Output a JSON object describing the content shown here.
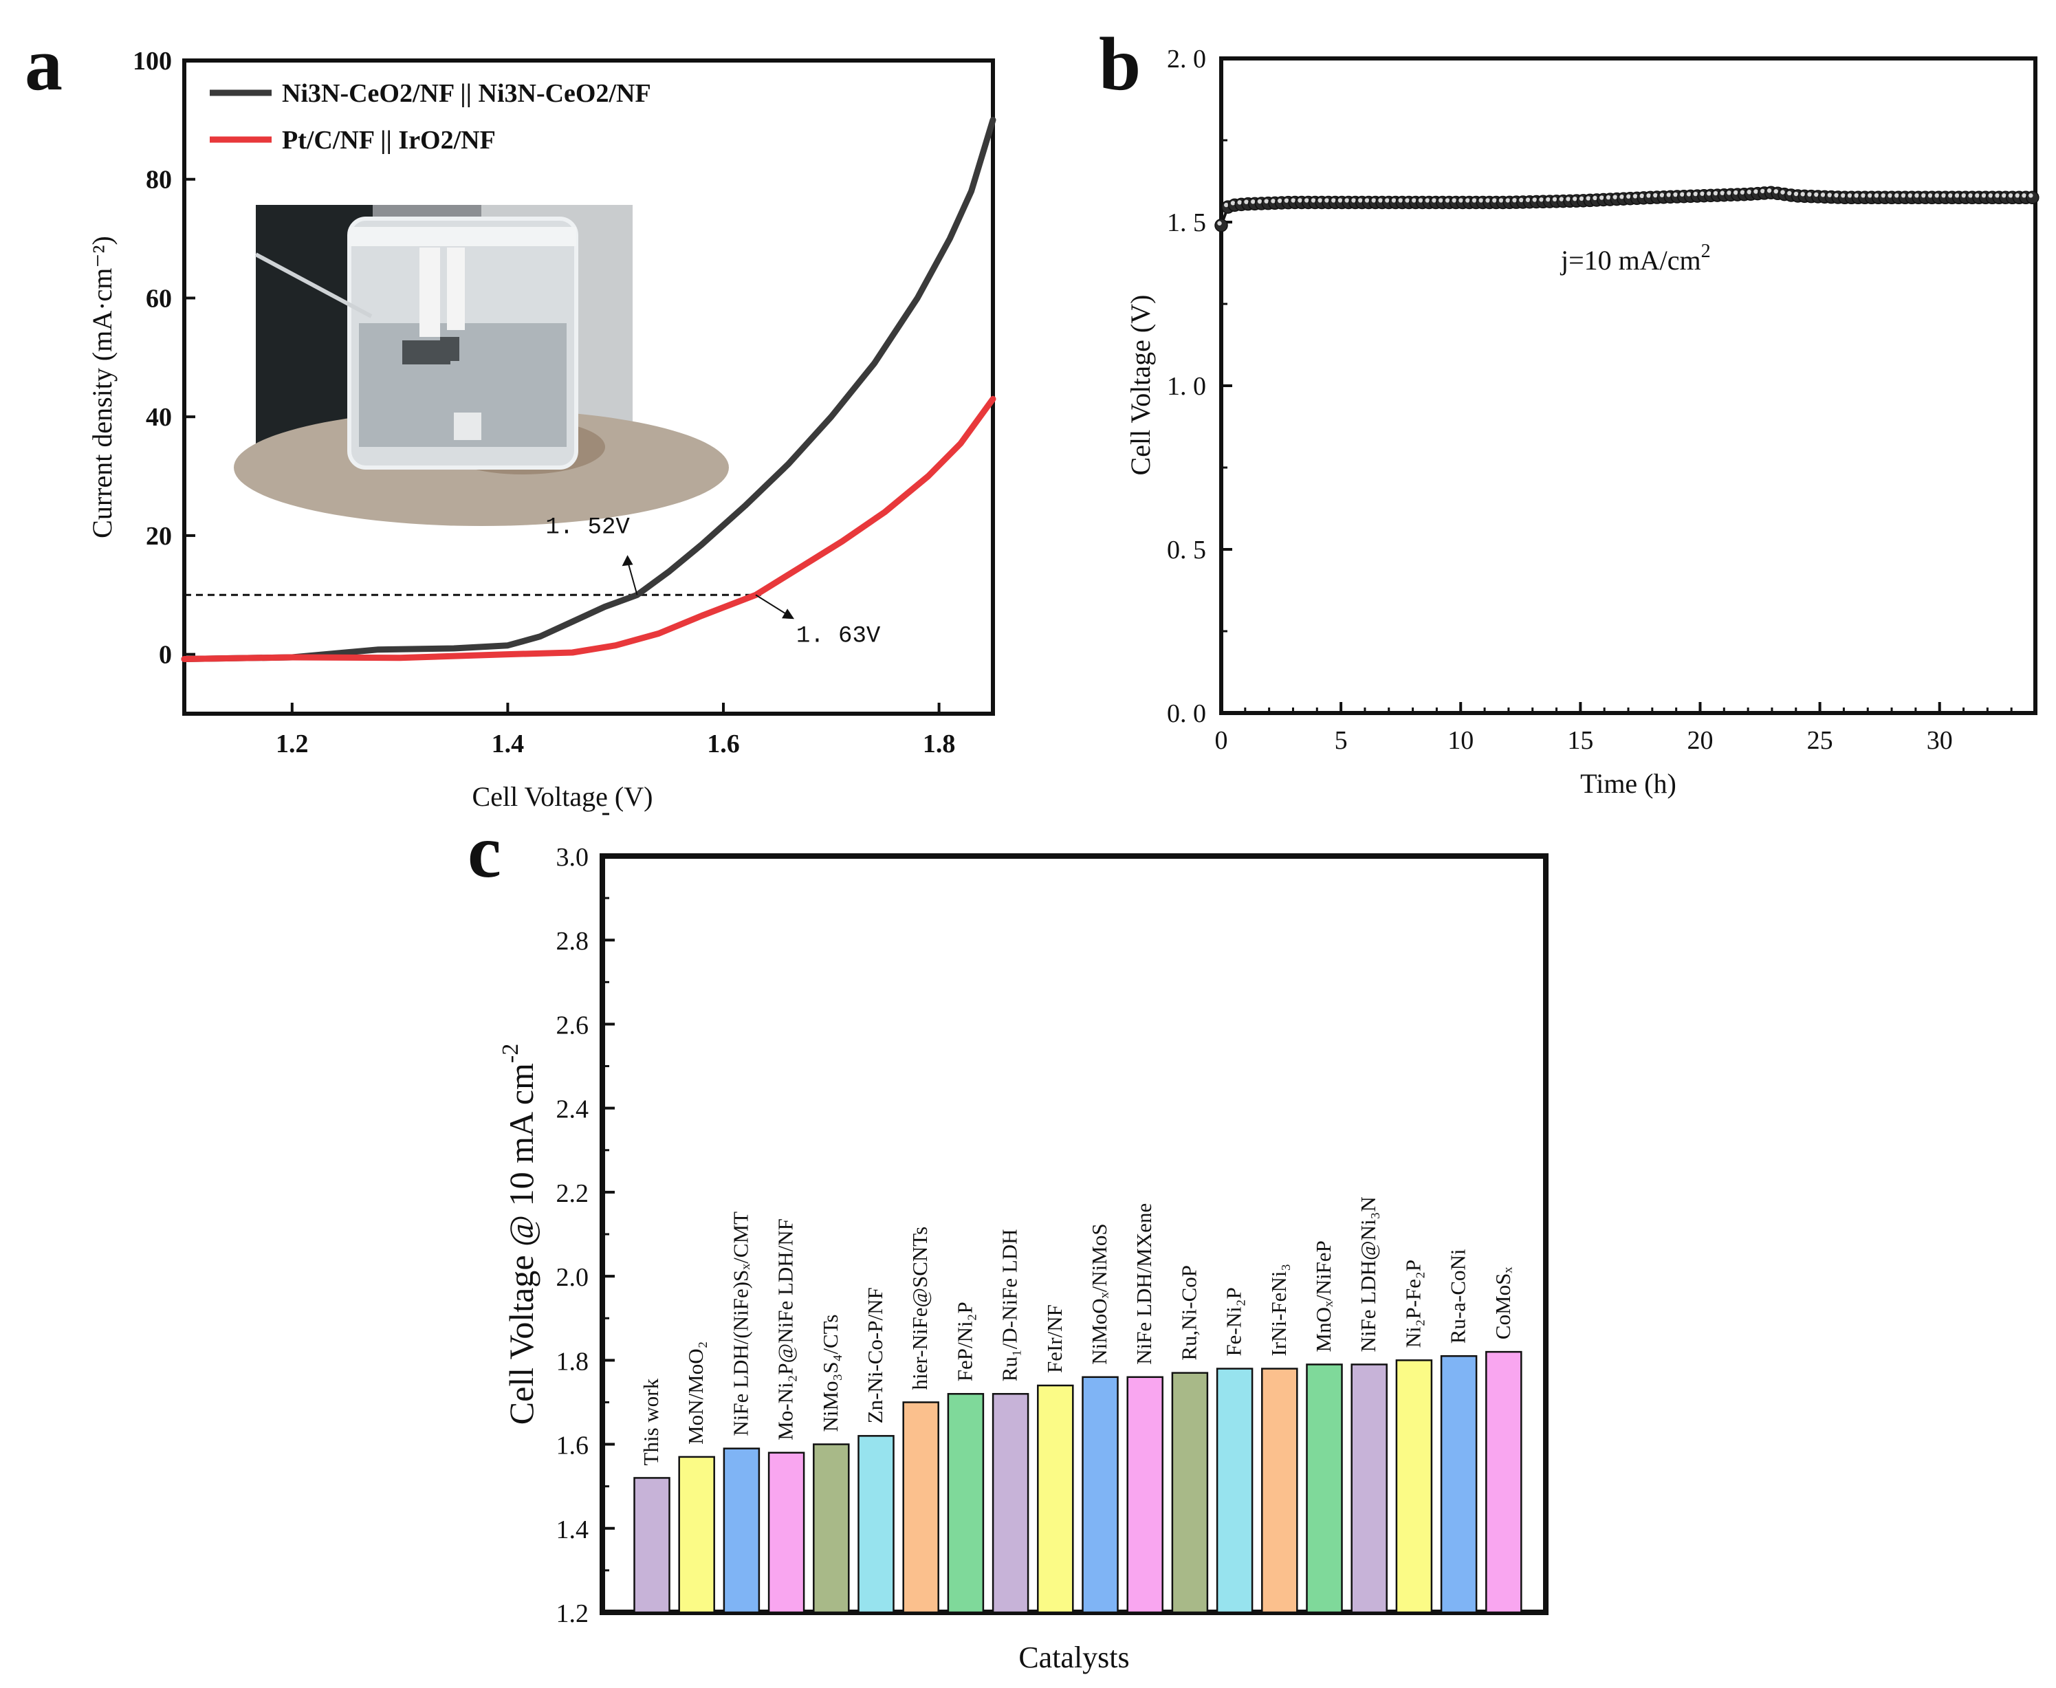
{
  "panels": {
    "a": {
      "letter": "a"
    },
    "b": {
      "letter": "b"
    },
    "c": {
      "letter": "c"
    }
  },
  "chart_data": [
    {
      "id": "a",
      "type": "line",
      "xlabel": "Cell Voltage (V)",
      "ylabel": "Current density (mA·cm⁻²)",
      "xlim": [
        1.1,
        1.85
      ],
      "ylim": [
        -10,
        100
      ],
      "xticks": [
        1.2,
        1.4,
        1.6,
        1.8
      ],
      "yticks": [
        0,
        20,
        40,
        60,
        80,
        100
      ],
      "inset": "photo of electrolyzer cell (Ni3N-CeO2/NF two-electrode setup)",
      "series": [
        {
          "name": "Ni3N-CeO2/NF || Ni3N-CeO2/NF",
          "color": "#3a3a3a",
          "x": [
            1.1,
            1.2,
            1.28,
            1.35,
            1.4,
            1.43,
            1.46,
            1.49,
            1.52,
            1.55,
            1.58,
            1.62,
            1.66,
            1.7,
            1.74,
            1.78,
            1.81,
            1.83,
            1.85
          ],
          "y": [
            -0.8,
            -0.5,
            0.8,
            1.0,
            1.5,
            3.0,
            5.5,
            8.0,
            10.0,
            14.0,
            18.5,
            25.0,
            32.0,
            40.0,
            49.0,
            60.0,
            70.0,
            78.0,
            90.0
          ]
        },
        {
          "name": "Pt/C/NF || IrO2/NF",
          "color": "#e8383b",
          "x": [
            1.1,
            1.2,
            1.3,
            1.4,
            1.46,
            1.5,
            1.54,
            1.58,
            1.63,
            1.67,
            1.71,
            1.75,
            1.79,
            1.82,
            1.85
          ],
          "y": [
            -0.8,
            -0.5,
            -0.6,
            0.0,
            0.3,
            1.5,
            3.5,
            6.5,
            10.0,
            14.5,
            19.0,
            24.0,
            30.0,
            35.5,
            43.0
          ]
        }
      ],
      "reference_line": {
        "y": 10
      },
      "annotations": [
        {
          "text": "1. 52V",
          "x": 1.52,
          "y": 10
        },
        {
          "text": "1. 63V",
          "x": 1.63,
          "y": 10
        }
      ]
    },
    {
      "id": "b",
      "type": "line",
      "xlabel": "Time (h)",
      "ylabel": "Cell Voltage (V)",
      "xlim": [
        0,
        34
      ],
      "ylim": [
        0,
        2.0
      ],
      "xticks": [
        0,
        5,
        10,
        15,
        20,
        25,
        30
      ],
      "yticks": [
        "0. 0",
        "0. 5",
        "1. 0",
        "1. 5",
        "2. 0"
      ],
      "annotation": "j=10 mA/cm",
      "annotation_sup": "2",
      "series": [
        {
          "name": "Ni3N-CeO2/NF || Ni3N-CeO2/NF",
          "x": [
            0,
            0.3,
            1,
            3,
            6,
            9,
            12,
            15,
            18,
            20,
            22,
            23,
            24,
            26,
            28,
            30,
            32,
            34
          ],
          "y": [
            1.49,
            1.55,
            1.555,
            1.56,
            1.56,
            1.56,
            1.56,
            1.565,
            1.575,
            1.58,
            1.585,
            1.59,
            1.58,
            1.575,
            1.575,
            1.575,
            1.575,
            1.575
          ]
        }
      ]
    },
    {
      "id": "c",
      "type": "bar",
      "xlabel": "Catalysts",
      "ylabel": "Cell Voltage @ 10 mA cm",
      "ylabel_sup": "-2",
      "ylim": [
        1.2,
        3.0
      ],
      "yticks": [
        "1.2",
        "1.4",
        "1.6",
        "1.8",
        "2.0",
        "2.2",
        "2.4",
        "2.6",
        "2.8",
        "3.0"
      ],
      "categories": [
        "This work",
        "MoN/MoO₂",
        "NiFe LDH/(NiFe)Sₓ/CMT",
        "Mo-Ni₂P@NiFe LDH/NF",
        "NiMo₃S₄/CTs",
        "Zn-Ni-Co-P/NF",
        "hier-NiFe@SCNTs",
        "FeP/Ni₂P",
        "Ru₁/D-NiFe LDH",
        "FeIr/NF",
        "NiMoOₓ/NiMoS",
        "NiFe LDH/MXene",
        "Ru,Ni-CoP",
        "Fe-Ni₂P",
        "IrNi-FeNi₃",
        "MnOₓ/NiFeP",
        "NiFe LDH@Ni₃N",
        "Ni₂P-Fe₂P",
        "Ru-a-CoNi",
        "CoMoSₓ"
      ],
      "values": [
        1.52,
        1.57,
        1.59,
        1.58,
        1.6,
        1.62,
        1.7,
        1.72,
        1.72,
        1.74,
        1.76,
        1.76,
        1.77,
        1.78,
        1.78,
        1.79,
        1.79,
        1.8,
        1.81,
        1.82
      ],
      "colors": [
        "#c7b3d8",
        "#fbfb86",
        "#7fb4f5",
        "#f9a6f0",
        "#a8b988",
        "#97e3ee",
        "#fbc08d",
        "#7fd99a",
        "#c7b3d8",
        "#fbfb86",
        "#7fb4f5",
        "#f9a6f0",
        "#a8b988",
        "#97e3ee",
        "#fbc08d",
        "#7fd99a",
        "#c7b3d8",
        "#fbfb86",
        "#7fb4f5",
        "#f9a6f0"
      ]
    }
  ]
}
